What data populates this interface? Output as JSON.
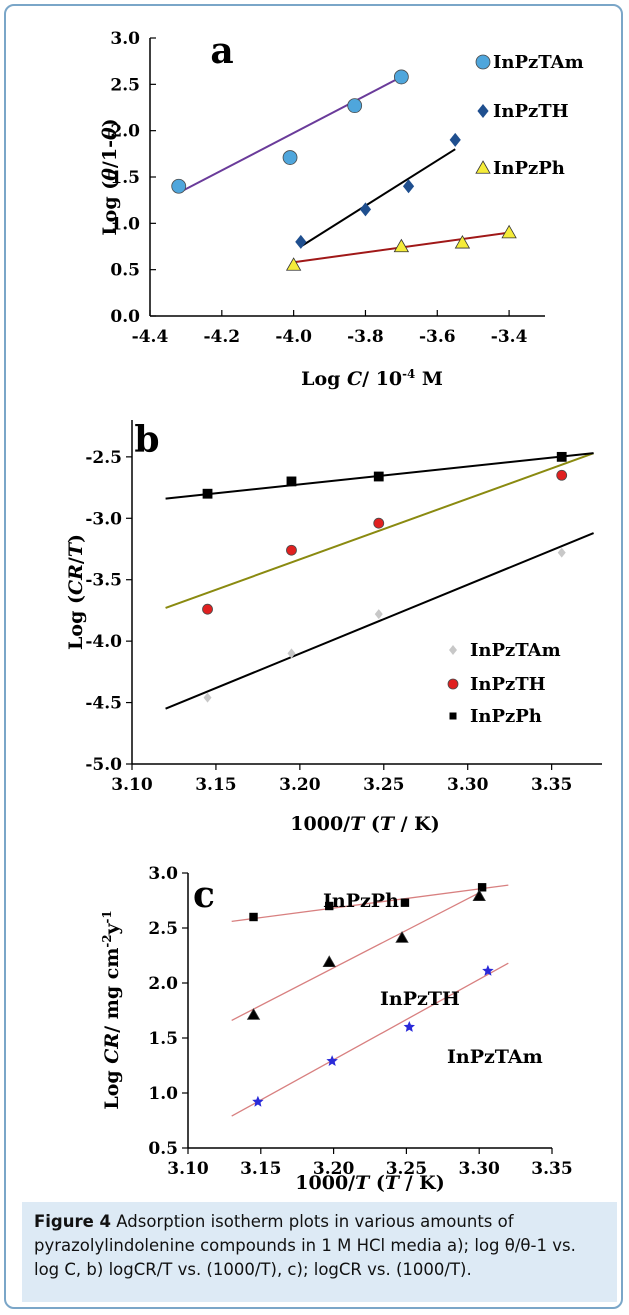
{
  "caption": {
    "label": "Figure 4",
    "text": "Adsorption isotherm plots in various amounts of pyrazolylindolenine compounds in 1 M HCl media a); log θ/θ-1 vs. log C, b) logCR/T vs. (1000/T), c); logCR vs. (1000/T)."
  },
  "chart_data": [
    {
      "type": "scatter",
      "panel_label": "a",
      "xlabel": "Log C/ 10-4 M",
      "ylabel": "Log (θ/1-θ)",
      "xlim": [
        -4.4,
        -3.3
      ],
      "ylim": [
        0.0,
        3.0
      ],
      "xticks": [
        "-4.4",
        "-4.2",
        "-4.0",
        "-3.8",
        "-3.6",
        "-3.4"
      ],
      "yticks": [
        "0.0",
        "0.5",
        "1.0",
        "1.5",
        "2.0",
        "2.5",
        "3.0"
      ],
      "legend_position": "top-right",
      "series": [
        {
          "name": "InPzTAm",
          "marker": "circle",
          "color": "#4fa6dc",
          "x": [
            -4.32,
            -4.01,
            -3.83,
            -3.7
          ],
          "y": [
            1.4,
            1.71,
            2.27,
            2.58
          ],
          "fit": {
            "x": [
              -4.32,
              -3.7
            ],
            "y": [
              1.33,
              2.58
            ],
            "color": "#6a3b9a"
          }
        },
        {
          "name": "InPzTH",
          "marker": "diamond",
          "color": "#1f4f8f",
          "x": [
            -3.98,
            -3.8,
            -3.68,
            -3.55
          ],
          "y": [
            0.8,
            1.15,
            1.4,
            1.9
          ],
          "fit": {
            "x": [
              -3.98,
              -3.55
            ],
            "y": [
              0.75,
              1.8
            ],
            "color": "#000000"
          }
        },
        {
          "name": "InPzPh",
          "marker": "triangle",
          "color": "#f5ec3a",
          "x": [
            -4.0,
            -3.7,
            -3.53,
            -3.4
          ],
          "y": [
            0.55,
            0.75,
            0.79,
            0.9
          ],
          "fit": {
            "x": [
              -4.0,
              -3.4
            ],
            "y": [
              0.58,
              0.9
            ],
            "color": "#a01818"
          }
        }
      ]
    },
    {
      "type": "scatter",
      "panel_label": "b",
      "xlabel": "1000/T (T / K)",
      "ylabel": "Log (CR/T)",
      "xlim": [
        3.1,
        3.38
      ],
      "ylim": [
        -5.0,
        -2.2
      ],
      "xticks": [
        "3.10",
        "3.15",
        "3.20",
        "3.25",
        "3.30",
        "3.35"
      ],
      "yticks": [
        "-5.0",
        "-4.5",
        "-4.0",
        "-3.5",
        "-3.0",
        "-2.5"
      ],
      "legend_position": "bottom-right",
      "series": [
        {
          "name": "InPzTAm",
          "marker": "diamond",
          "color": "#c8c8c8",
          "x": [
            3.145,
            3.195,
            3.247,
            3.356
          ],
          "y": [
            -4.46,
            -4.1,
            -3.78,
            -3.28
          ],
          "fit": {
            "x": [
              3.12,
              3.375
            ],
            "y": [
              -4.55,
              -3.12
            ],
            "color": "#000000"
          }
        },
        {
          "name": "InPzTH",
          "marker": "circle",
          "color": "#e02020",
          "x": [
            3.145,
            3.195,
            3.247,
            3.356
          ],
          "y": [
            -3.74,
            -3.26,
            -3.04,
            -2.65
          ],
          "fit": {
            "x": [
              3.12,
              3.375
            ],
            "y": [
              -3.73,
              -2.47
            ],
            "color": "#8a8a10"
          }
        },
        {
          "name": "InPzPh",
          "marker": "square",
          "color": "#000000",
          "x": [
            3.145,
            3.195,
            3.247,
            3.356
          ],
          "y": [
            -2.8,
            -2.7,
            -2.66,
            -2.5
          ],
          "fit": {
            "x": [
              3.12,
              3.375
            ],
            "y": [
              -2.84,
              -2.47
            ],
            "color": "#000000"
          }
        }
      ]
    },
    {
      "type": "scatter",
      "panel_label": "c",
      "xlabel": "1000/T (T / K)",
      "ylabel": "Log CR/ mg cm-2y-1",
      "xlim": [
        3.1,
        3.35
      ],
      "ylim": [
        0.5,
        3.0
      ],
      "xticks": [
        "3.10",
        "3.15",
        "3.20",
        "3.25",
        "3.30",
        "3.35"
      ],
      "yticks": [
        "0.5",
        "1.0",
        "1.5",
        "2.0",
        "2.5",
        "3.0"
      ],
      "legend_position": "inline labels",
      "series": [
        {
          "name": "InPzPh",
          "marker": "square",
          "color": "#000000",
          "x": [
            3.145,
            3.197,
            3.249,
            3.302
          ],
          "y": [
            2.6,
            2.7,
            2.73,
            2.87
          ],
          "fit": {
            "x": [
              3.13,
              3.32
            ],
            "y": [
              2.56,
              2.89
            ],
            "color": "#d88080"
          }
        },
        {
          "name": "InPzTH",
          "marker": "triangle",
          "color": "#000000",
          "x": [
            3.145,
            3.197,
            3.247,
            3.3
          ],
          "y": [
            1.71,
            2.19,
            2.41,
            2.79
          ],
          "fit": {
            "x": [
              3.13,
              3.3
            ],
            "y": [
              1.66,
              2.82
            ],
            "color": "#d88080"
          }
        },
        {
          "name": "InPzTAm",
          "marker": "star",
          "color": "#2a2ad8",
          "x": [
            3.148,
            3.199,
            3.252,
            3.306
          ],
          "y": [
            0.92,
            1.29,
            1.6,
            2.11
          ],
          "fit": {
            "x": [
              3.13,
              3.32
            ],
            "y": [
              0.79,
              2.18
            ],
            "color": "#d88080"
          }
        }
      ]
    }
  ]
}
